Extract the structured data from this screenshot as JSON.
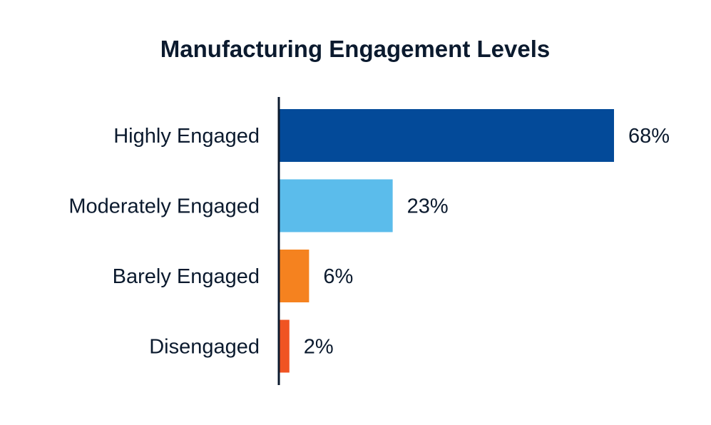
{
  "chart_data": {
    "type": "bar",
    "orientation": "horizontal",
    "title": "Manufacturing Engagement Levels",
    "xlabel": "",
    "ylabel": "",
    "categories": [
      "Highly Engaged",
      "Moderately Engaged",
      "Barely Engaged",
      "Disengaged"
    ],
    "values": [
      68,
      23,
      6,
      2
    ],
    "value_labels": [
      "68%",
      "23%",
      "6%",
      "2%"
    ],
    "colors": [
      "#034a99",
      "#5bbceb",
      "#f5821f",
      "#f05423"
    ],
    "xlim": [
      0,
      68
    ],
    "grid": false,
    "legend": "none"
  }
}
